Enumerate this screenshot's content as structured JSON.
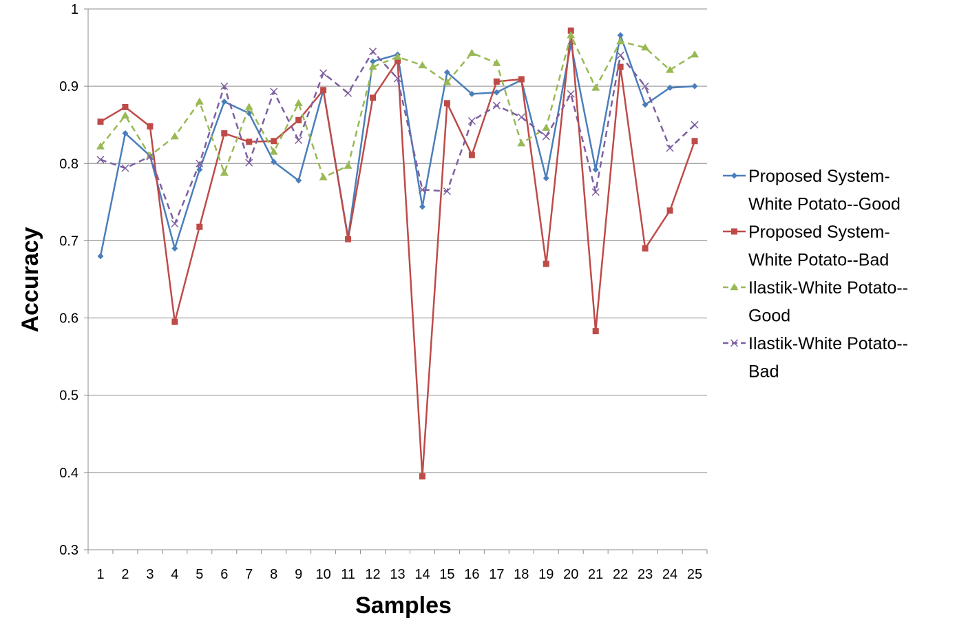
{
  "chart_data": {
    "type": "line",
    "title": "",
    "xlabel": "Samples",
    "ylabel": "Accuracy",
    "ylim": [
      0.3,
      1
    ],
    "yticks": [
      0.3,
      0.4,
      0.5,
      0.6,
      0.7,
      0.8,
      0.9,
      1
    ],
    "grid": true,
    "legend_position": "right",
    "categories": [
      "1",
      "2",
      "3",
      "4",
      "5",
      "6",
      "7",
      "8",
      "9",
      "10",
      "11",
      "12",
      "13",
      "14",
      "15",
      "16",
      "17",
      "18",
      "19",
      "20",
      "21",
      "22",
      "23",
      "24",
      "25"
    ],
    "series": [
      {
        "name": "Proposed System-White Potato--Good",
        "legend_lines": [
          "Proposed System-",
          "White Potato--Good"
        ],
        "color": "#4a7ebb",
        "marker": "diamond",
        "dash": "solid",
        "values": [
          0.68,
          0.839,
          0.81,
          0.69,
          0.792,
          0.88,
          0.865,
          0.802,
          0.778,
          0.895,
          0.704,
          0.932,
          0.941,
          0.744,
          0.918,
          0.89,
          0.892,
          0.908,
          0.781,
          0.955,
          0.792,
          0.966,
          0.876,
          0.898,
          0.9
        ]
      },
      {
        "name": "Proposed System-White Potato--Bad",
        "legend_lines": [
          "Proposed System-",
          "White Potato--Bad"
        ],
        "color": "#be4b48",
        "marker": "square",
        "dash": "solid",
        "values": [
          0.854,
          0.873,
          0.848,
          0.595,
          0.718,
          0.839,
          0.828,
          0.829,
          0.856,
          0.895,
          0.702,
          0.885,
          0.933,
          0.395,
          0.878,
          0.811,
          0.906,
          0.909,
          0.67,
          0.972,
          0.583,
          0.925,
          0.69,
          0.739,
          0.829
        ]
      },
      {
        "name": "Ilastik-White Potato--Good",
        "legend_lines": [
          "Ilastik-White Potato--",
          "Good"
        ],
        "color": "#98b954",
        "marker": "triangle",
        "dash": "dashed",
        "values": [
          0.822,
          0.862,
          0.81,
          0.835,
          0.88,
          0.788,
          0.873,
          0.815,
          0.878,
          0.782,
          0.797,
          0.925,
          0.938,
          0.927,
          0.905,
          0.943,
          0.93,
          0.826,
          0.846,
          0.966,
          0.898,
          0.958,
          0.95,
          0.921,
          0.941
        ]
      },
      {
        "name": "Ilastik-White Potato--Bad",
        "legend_lines": [
          "Ilastik-White Potato--",
          "Bad"
        ],
        "color": "#7d5fa0",
        "marker": "x",
        "dash": "dashed",
        "values": [
          0.805,
          0.794,
          0.809,
          0.722,
          0.8,
          0.9,
          0.801,
          0.893,
          0.83,
          0.917,
          0.891,
          0.945,
          0.91,
          0.766,
          0.764,
          0.855,
          0.875,
          0.86,
          0.835,
          0.89,
          0.763,
          0.94,
          0.9,
          0.82,
          0.85
        ]
      }
    ]
  }
}
